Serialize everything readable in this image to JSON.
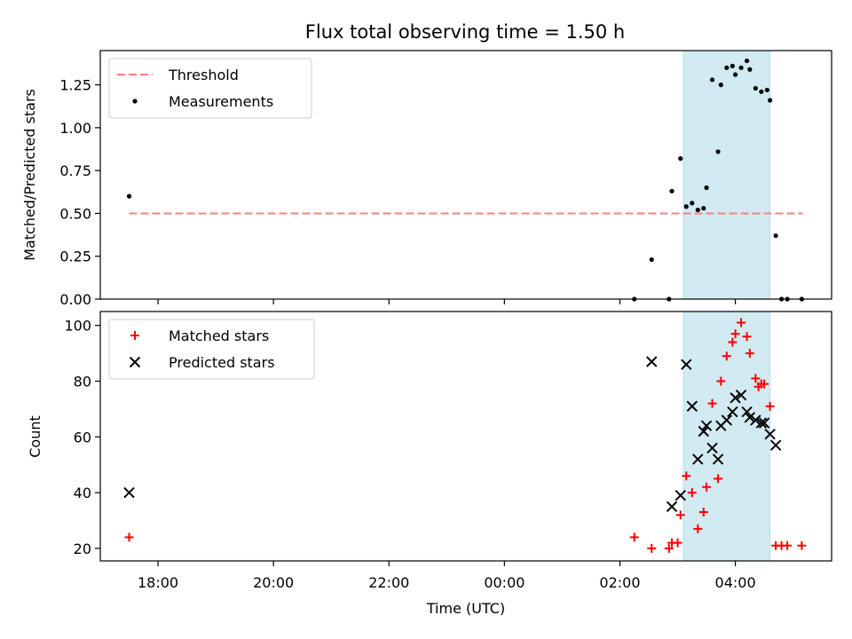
{
  "chart_data": {
    "type": "scatter",
    "title": "Flux total observing time = 1.50 h",
    "xlabel": "Time (UTC)",
    "x_unit": "hours UTC (continuing past midnight)",
    "xlim": [
      "17:00",
      "05:40"
    ],
    "xticks": [
      {
        "time": "18:00",
        "label": "18:00"
      },
      {
        "time": "20:00",
        "label": "20:00"
      },
      {
        "time": "22:00",
        "label": "22:00"
      },
      {
        "time": "00:00",
        "label": "00:00"
      },
      {
        "time": "02:00",
        "label": "02:00"
      },
      {
        "time": "04:00",
        "label": "04:00"
      }
    ],
    "shaded_interval": {
      "start": "03:06",
      "end": "04:36",
      "color": "#add8e6"
    },
    "panels": [
      {
        "name": "top",
        "ylabel": "Matched/Predicted stars",
        "ylim": [
          0,
          1.45
        ],
        "yticks": [
          "0.00",
          "0.25",
          "0.50",
          "0.75",
          "1.00",
          "1.25"
        ],
        "threshold": {
          "label": "Threshold",
          "value": 0.5,
          "x_start": "17:30",
          "x_end": "05:10",
          "color": "#ff7f7f"
        },
        "series": [
          {
            "name": "Measurements",
            "marker": "dot",
            "color": "#000000",
            "points": [
              [
                "17:30",
                0.6
              ],
              [
                "02:15",
                0.0
              ],
              [
                "02:33",
                0.23
              ],
              [
                "02:51",
                0.0
              ],
              [
                "02:54",
                0.63
              ],
              [
                "03:03",
                0.82
              ],
              [
                "03:09",
                0.54
              ],
              [
                "03:15",
                0.56
              ],
              [
                "03:21",
                0.52
              ],
              [
                "03:27",
                0.53
              ],
              [
                "03:30",
                0.65
              ],
              [
                "03:36",
                1.28
              ],
              [
                "03:42",
                0.86
              ],
              [
                "03:45",
                1.25
              ],
              [
                "03:51",
                1.35
              ],
              [
                "03:57",
                1.36
              ],
              [
                "04:00",
                1.31
              ],
              [
                "04:06",
                1.35
              ],
              [
                "04:12",
                1.39
              ],
              [
                "04:15",
                1.34
              ],
              [
                "04:21",
                1.23
              ],
              [
                "04:27",
                1.21
              ],
              [
                "04:33",
                1.22
              ],
              [
                "04:36",
                1.16
              ],
              [
                "04:42",
                0.37
              ],
              [
                "04:48",
                0.0
              ],
              [
                "04:54",
                0.0
              ],
              [
                "05:09",
                0.0
              ]
            ]
          }
        ],
        "legend": {
          "position": "top-left",
          "entries": [
            "Threshold",
            "Measurements"
          ]
        }
      },
      {
        "name": "bottom",
        "ylabel": "Count",
        "ylim": [
          15.5,
          105
        ],
        "yticks": [
          "20",
          "40",
          "60",
          "80",
          "100"
        ],
        "series": [
          {
            "name": "Matched stars",
            "marker": "plus",
            "color": "#ff0000",
            "points": [
              [
                "17:30",
                24
              ],
              [
                "02:15",
                24
              ],
              [
                "02:33",
                20
              ],
              [
                "02:51",
                20
              ],
              [
                "02:54",
                22
              ],
              [
                "03:00",
                22
              ],
              [
                "03:03",
                32
              ],
              [
                "03:09",
                46
              ],
              [
                "03:15",
                40
              ],
              [
                "03:21",
                27
              ],
              [
                "03:27",
                33
              ],
              [
                "03:30",
                42
              ],
              [
                "03:36",
                72
              ],
              [
                "03:42",
                45
              ],
              [
                "03:45",
                80
              ],
              [
                "03:51",
                89
              ],
              [
                "03:57",
                94
              ],
              [
                "04:00",
                97
              ],
              [
                "04:06",
                101
              ],
              [
                "04:12",
                96
              ],
              [
                "04:15",
                90
              ],
              [
                "04:21",
                81
              ],
              [
                "04:24",
                78
              ],
              [
                "04:27",
                79
              ],
              [
                "04:30",
                79
              ],
              [
                "04:36",
                71
              ],
              [
                "04:42",
                21
              ],
              [
                "04:48",
                21
              ],
              [
                "04:54",
                21
              ],
              [
                "05:09",
                21
              ]
            ]
          },
          {
            "name": "Predicted stars",
            "marker": "x",
            "color": "#000000",
            "points": [
              [
                "17:30",
                40
              ],
              [
                "02:33",
                87
              ],
              [
                "02:54",
                35
              ],
              [
                "03:03",
                39
              ],
              [
                "03:09",
                86
              ],
              [
                "03:15",
                71
              ],
              [
                "03:21",
                52
              ],
              [
                "03:27",
                62
              ],
              [
                "03:30",
                64
              ],
              [
                "03:36",
                56
              ],
              [
                "03:42",
                52
              ],
              [
                "03:45",
                64
              ],
              [
                "03:51",
                66
              ],
              [
                "03:57",
                69
              ],
              [
                "04:00",
                74
              ],
              [
                "04:06",
                75
              ],
              [
                "04:12",
                69
              ],
              [
                "04:15",
                67
              ],
              [
                "04:21",
                66
              ],
              [
                "04:27",
                65
              ],
              [
                "04:30",
                65
              ],
              [
                "04:36",
                61
              ],
              [
                "04:42",
                57
              ]
            ]
          }
        ],
        "legend": {
          "position": "top-left",
          "entries": [
            "Matched stars",
            "Predicted stars"
          ]
        }
      }
    ],
    "grid": false
  }
}
